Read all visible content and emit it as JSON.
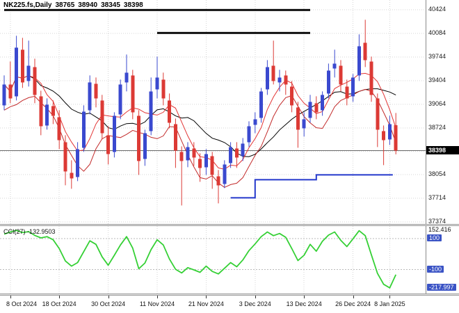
{
  "window": {
    "title_symbol": "NK225.fs,Daily",
    "open": "38765",
    "high": "38940",
    "low": "38345",
    "close": "38398"
  },
  "colors": {
    "bull": "#3a49cf",
    "bear": "#dc3a35",
    "ma_black": "#000000",
    "ma_red": "#e23434",
    "ma_red2": "#c22a2a",
    "step_line": "#2438cc",
    "cci_line": "#35d035",
    "level_box": "#3a53c5",
    "price_tag_bg": "#000000",
    "grid": "#d6d6d6",
    "object_line": "#111111",
    "price_line": "#6b6b6b"
  },
  "chart_data": {
    "type": "candlestick",
    "symbol": "NK225.fs",
    "timeframe": "Daily",
    "last_ohlc": {
      "open": 38765,
      "high": 38940,
      "low": 38345,
      "close": 38398
    },
    "y_grid": [
      {
        "p": 40424,
        "label": "40424"
      },
      {
        "p": 40084,
        "label": "40084"
      },
      {
        "p": 39744,
        "label": "39744"
      },
      {
        "p": 39404,
        "label": "39404"
      },
      {
        "p": 39064,
        "label": "39064"
      },
      {
        "p": 38724,
        "label": "38724"
      },
      {
        "p": 38389,
        "label": ""
      },
      {
        "p": 38054,
        "label": "38054"
      },
      {
        "p": 37714,
        "label": "37714"
      },
      {
        "p": 37374,
        "label": "37374"
      }
    ],
    "x_labels": [
      {
        "index": 1,
        "text": "8 Oct 2024"
      },
      {
        "index": 9,
        "text": "18 Oct 2024"
      },
      {
        "index": 17,
        "text": "30 Oct 2024"
      },
      {
        "index": 25,
        "text": "11 Nov 2024"
      },
      {
        "index": 33,
        "text": "21 Nov 2024"
      },
      {
        "index": 41,
        "text": "3 Dec 2024"
      },
      {
        "index": 49,
        "text": "13 Dec 2024"
      },
      {
        "index": 57,
        "text": "26 Dec 2024"
      },
      {
        "index": 63,
        "text": "8 Jan 2025"
      }
    ],
    "price_line": 38398,
    "price_line_label": "38398",
    "object_lines": [
      {
        "price": 40420,
        "from": 0,
        "to": 50
      },
      {
        "price": 40090,
        "from": 25,
        "to": 50
      }
    ],
    "step_line": [
      {
        "from": 37,
        "to": 41,
        "level": 37720
      },
      {
        "from": 41,
        "to": 51,
        "level": 37980
      },
      {
        "from": 51,
        "to": 63.5,
        "level": 38050
      }
    ],
    "moving_averages": {
      "black_period": 13,
      "red_period": 5
    },
    "candles": [
      [
        39050,
        39480,
        38980,
        39350
      ],
      [
        39350,
        39680,
        39080,
        39150
      ],
      [
        39180,
        40050,
        39120,
        39880
      ],
      [
        39850,
        40020,
        39300,
        39380
      ],
      [
        39400,
        39980,
        39320,
        39620
      ],
      [
        39600,
        39720,
        39080,
        39200
      ],
      [
        39180,
        39260,
        38620,
        38750
      ],
      [
        38760,
        39150,
        38700,
        39060
      ],
      [
        39040,
        39120,
        38780,
        38900
      ],
      [
        38880,
        38980,
        38420,
        38550
      ],
      [
        38520,
        38620,
        37900,
        38100
      ],
      [
        38080,
        38260,
        37850,
        38000
      ],
      [
        38020,
        38520,
        37960,
        38420
      ],
      [
        38440,
        39050,
        38380,
        38960
      ],
      [
        38980,
        39480,
        38920,
        39380
      ],
      [
        39360,
        39450,
        39020,
        39150
      ],
      [
        39120,
        39200,
        38560,
        38650
      ],
      [
        38620,
        38750,
        38200,
        38350
      ],
      [
        38380,
        38950,
        38300,
        38900
      ],
      [
        38920,
        39420,
        38850,
        39350
      ],
      [
        39380,
        39780,
        39250,
        39520
      ],
      [
        39480,
        39560,
        38850,
        38950
      ],
      [
        38900,
        38980,
        38050,
        38250
      ],
      [
        38280,
        38700,
        38180,
        38650
      ],
      [
        38680,
        39450,
        38620,
        39250
      ],
      [
        39280,
        39750,
        39150,
        39450
      ],
      [
        39420,
        39520,
        39050,
        39150
      ],
      [
        39120,
        39220,
        38720,
        38800
      ],
      [
        38780,
        38860,
        38150,
        38400
      ],
      [
        38380,
        38460,
        37610,
        38250
      ],
      [
        38260,
        38520,
        38160,
        38450
      ],
      [
        38430,
        38520,
        38180,
        38300
      ],
      [
        38280,
        38360,
        37950,
        38150
      ],
      [
        38160,
        38420,
        38050,
        38350
      ],
      [
        38320,
        38380,
        37850,
        38050
      ],
      [
        38030,
        38120,
        37640,
        37900
      ],
      [
        37920,
        38260,
        37860,
        38200
      ],
      [
        38220,
        38520,
        38150,
        38450
      ],
      [
        38430,
        38520,
        38150,
        38300
      ],
      [
        38320,
        38580,
        38250,
        38500
      ],
      [
        38520,
        38820,
        38450,
        38750
      ],
      [
        38770,
        38950,
        38650,
        38850
      ],
      [
        38870,
        39300,
        38800,
        39250
      ],
      [
        39280,
        39700,
        39200,
        39600
      ],
      [
        39620,
        39980,
        39350,
        39400
      ],
      [
        39380,
        39560,
        39250,
        39450
      ],
      [
        39480,
        39550,
        39200,
        39350
      ],
      [
        39320,
        39400,
        38950,
        39050
      ],
      [
        39020,
        39100,
        38440,
        38700
      ],
      [
        38720,
        38950,
        38600,
        38850
      ],
      [
        38870,
        39200,
        38800,
        39100
      ],
      [
        39080,
        39180,
        38850,
        38950
      ],
      [
        38980,
        39250,
        38900,
        39200
      ],
      [
        39220,
        39650,
        39150,
        39550
      ],
      [
        39580,
        39850,
        39450,
        39650
      ],
      [
        39620,
        39700,
        39250,
        39350
      ],
      [
        39320,
        39420,
        39050,
        39150
      ],
      [
        39180,
        39500,
        39100,
        39450
      ],
      [
        39480,
        40070,
        39400,
        39900
      ],
      [
        39950,
        40280,
        39600,
        39700
      ],
      [
        39680,
        39750,
        39100,
        39200
      ],
      [
        39150,
        39220,
        38450,
        38700
      ],
      [
        38680,
        38760,
        38190,
        38550
      ],
      [
        38560,
        38900,
        38480,
        38780
      ],
      [
        38765,
        38940,
        38345,
        38398
      ]
    ],
    "cci": {
      "label": "CCI(27) -132.9503",
      "period": 27,
      "current": -132.9503,
      "levels": [
        100,
        -100
      ],
      "level_high_label": "100",
      "level_low_label": "-100",
      "axis_max": 152.416,
      "axis_min": -217.997,
      "axis_max_label": "152.416",
      "axis_min_label": "-217.997",
      "values": [
        128,
        142,
        152.416,
        138,
        144,
        120,
        104,
        112,
        92,
        35,
        -45,
        -78,
        -55,
        15,
        85,
        62,
        -18,
        -72,
        -8,
        58,
        112,
        38,
        -95,
        -58,
        28,
        92,
        58,
        -32,
        -98,
        -122,
        -88,
        -102,
        -118,
        -78,
        -112,
        -128,
        -92,
        -55,
        -82,
        -38,
        22,
        65,
        112,
        142,
        118,
        132,
        108,
        35,
        -42,
        -8,
        62,
        18,
        82,
        122,
        142,
        88,
        48,
        98,
        150,
        118,
        -5,
        -125,
        -195,
        -217.997,
        -132.9503
      ]
    }
  }
}
